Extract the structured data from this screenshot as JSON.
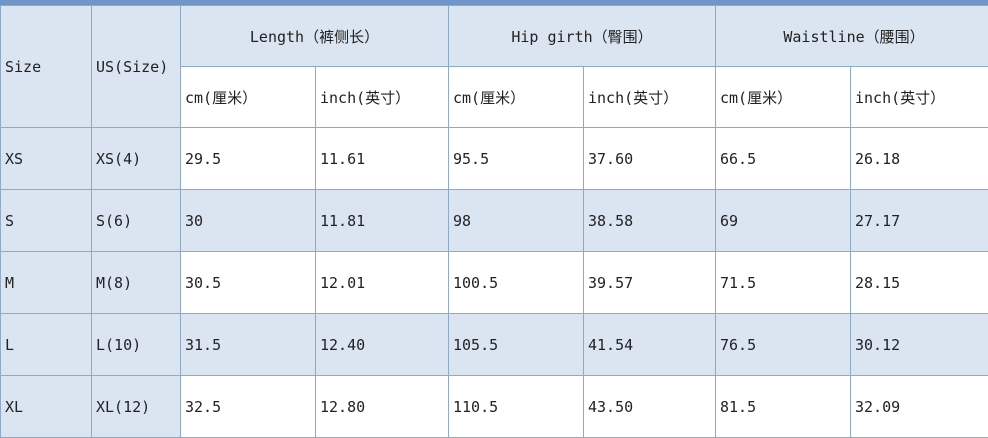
{
  "headers": {
    "size": "Size",
    "us_size": "US(Size)",
    "groups": [
      "Length（裤侧长）",
      "Hip girth（臀围）",
      "Waistline（腰围）"
    ],
    "units": [
      "cm(厘米）",
      "inch(英寸）",
      "cm(厘米）",
      "inch(英寸）",
      "cm(厘米）",
      "inch(英寸）"
    ]
  },
  "rows": [
    {
      "size": "XS",
      "us": "XS(4)",
      "values": [
        "29.5",
        "11.61",
        "95.5",
        "37.60",
        "66.5",
        "26.18"
      ]
    },
    {
      "size": "S",
      "us": "S(6)",
      "values": [
        "30",
        "11.81",
        "98",
        "38.58",
        "69",
        "27.17"
      ]
    },
    {
      "size": "M",
      "us": "M(8)",
      "values": [
        "30.5",
        "12.01",
        "100.5",
        "39.57",
        "71.5",
        "28.15"
      ]
    },
    {
      "size": "L",
      "us": "L(10)",
      "values": [
        "31.5",
        "12.40",
        "105.5",
        "41.54",
        "76.5",
        "30.12"
      ]
    },
    {
      "size": "XL",
      "us": "XL(12)",
      "values": [
        "32.5",
        "12.80",
        "110.5",
        "43.50",
        "81.5",
        "32.09"
      ]
    }
  ],
  "colors": {
    "header_bg": "#dbe5f1",
    "border": "#8eaacb",
    "top_bar": "#6f96c6"
  }
}
